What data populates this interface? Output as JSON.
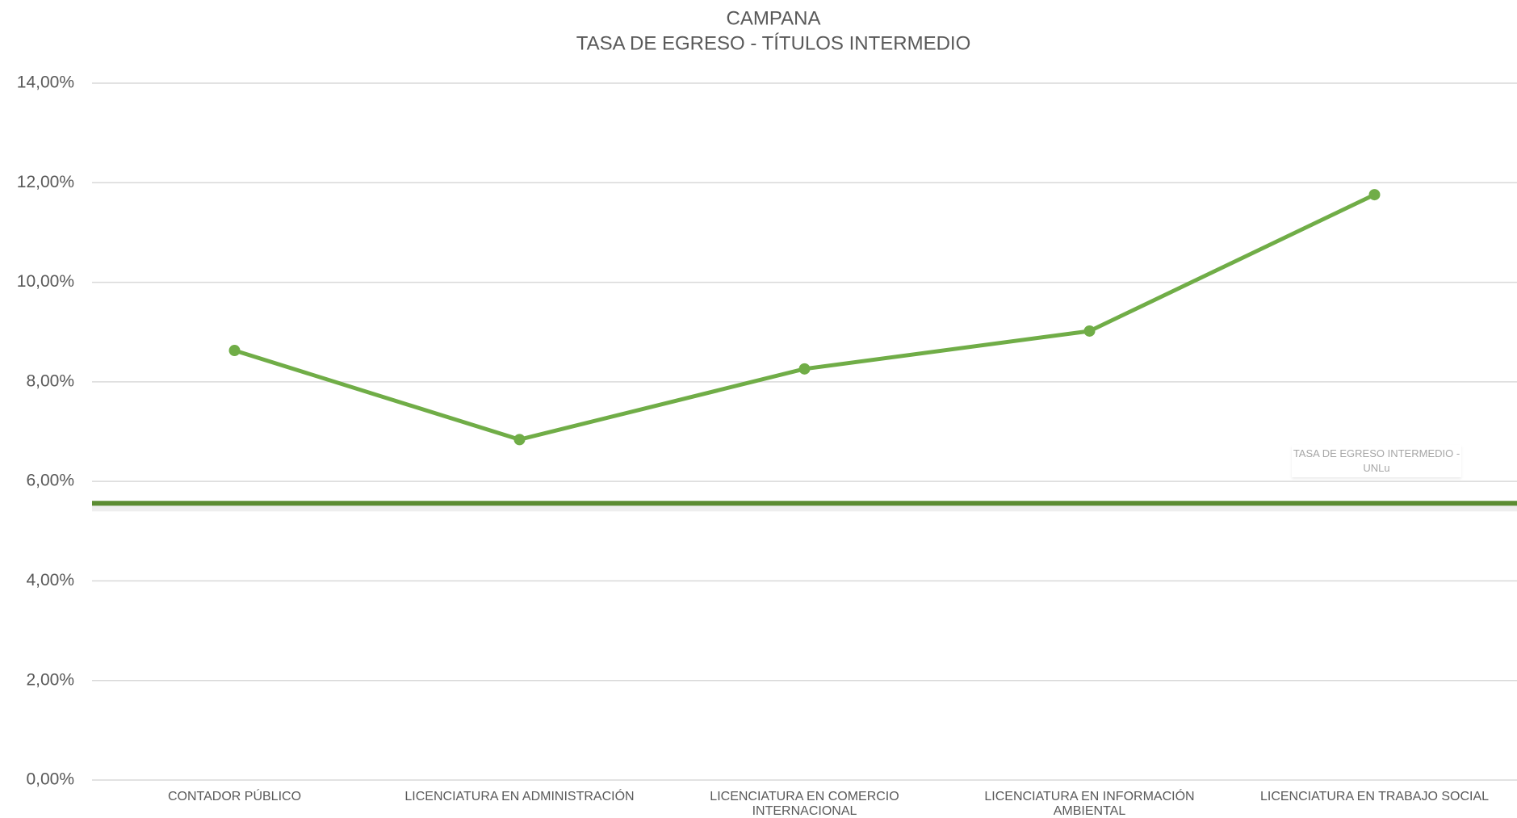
{
  "chart_data": {
    "type": "line",
    "title": "CAMPANA",
    "subtitle": "TASA DE EGRESO - TÍTULOS INTERMEDIO",
    "categories": [
      "CONTADOR PÚBLICO",
      "LICENCIATURA EN ADMINISTRACIÓN",
      "LICENCIATURA EN COMERCIO INTERNACIONAL",
      "LICENCIATURA EN INFORMACIÓN AMBIENTAL",
      "LICENCIATURA EN TRABAJO SOCIAL"
    ],
    "series": [
      {
        "name": "CAMPANA",
        "color": "#70ad47",
        "values": [
          8.63,
          6.84,
          8.26,
          9.02,
          11.76
        ]
      }
    ],
    "reference_line": {
      "name": "TASA DE EGRESO INTERMEDIO - UNLu",
      "value": 5.56,
      "color": "#5b8c32"
    },
    "ylim": [
      0,
      14
    ],
    "yticks": [
      {
        "value": 0,
        "label": "0,00%"
      },
      {
        "value": 2,
        "label": "2,00%"
      },
      {
        "value": 4,
        "label": "4,00%"
      },
      {
        "value": 6,
        "label": "6,00%"
      },
      {
        "value": 8,
        "label": "8,00%"
      },
      {
        "value": 10,
        "label": "10,00%"
      },
      {
        "value": 12,
        "label": "12,00%"
      },
      {
        "value": 14,
        "label": "14,00%"
      }
    ],
    "grid": true
  }
}
